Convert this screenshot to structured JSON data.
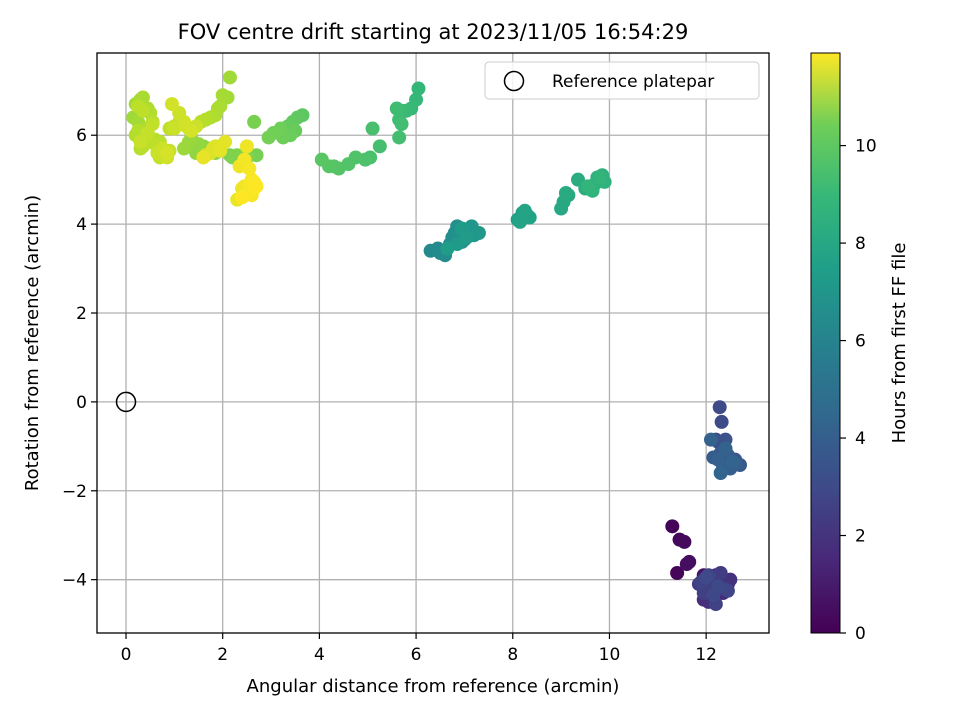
{
  "chart_data": {
    "type": "scatter",
    "title": "FOV centre drift starting at 2023/11/05 16:54:29",
    "xlabel": "Angular distance from reference (arcmin)",
    "ylabel": "Rotation from reference (arcmin)",
    "xlim": [
      -0.6,
      13.3
    ],
    "ylim": [
      -5.2,
      7.85
    ],
    "xticks": [
      0,
      2,
      4,
      6,
      8,
      10,
      12
    ],
    "yticks": [
      -4,
      -2,
      0,
      2,
      4,
      6
    ],
    "xtick_labels": [
      "0",
      "2",
      "4",
      "6",
      "8",
      "10",
      "12"
    ],
    "ytick_labels": [
      "−4",
      "−2",
      "0",
      "2",
      "4",
      "6"
    ],
    "grid": true,
    "legend": {
      "position": "top-right",
      "entries": [
        {
          "label": "Reference platepar",
          "marker": "open-circle"
        }
      ]
    },
    "reference_point": {
      "x": 0,
      "y": 0
    },
    "colorbar": {
      "label": "Hours from first FF file",
      "colormap": "viridis",
      "range": [
        0,
        11.9
      ],
      "ticks": [
        0,
        2,
        4,
        6,
        8,
        10
      ],
      "tick_labels": [
        "0",
        "2",
        "4",
        "6",
        "8",
        "10"
      ]
    },
    "series": [
      {
        "x": [
          11.3,
          11.45,
          11.55,
          11.4,
          11.65,
          11.6,
          11.95,
          12.0,
          12.1,
          11.9,
          12.2,
          12.3,
          12.45,
          12.15,
          12.35,
          11.95,
          12.05,
          12.5,
          12.25,
          12.4,
          12.15,
          12.0,
          11.85,
          12.3,
          12.1,
          11.95,
          12.2,
          12.35,
          11.9,
          12.45,
          12.05,
          12.15,
          12.25,
          12.0,
          12.28,
          12.32,
          12.2,
          12.25,
          12.4,
          12.5,
          12.6,
          12.7,
          12.3,
          12.45,
          12.15,
          12.5,
          12.35,
          12.6,
          12.25,
          12.1,
          12.4,
          12.55,
          12.3
        ],
        "y": [
          -2.8,
          -3.1,
          -3.15,
          -3.85,
          -3.6,
          -3.65,
          -3.9,
          -3.95,
          -4.0,
          -4.05,
          -3.9,
          -4.0,
          -4.1,
          -4.2,
          -4.3,
          -4.45,
          -4.5,
          -4.0,
          -4.1,
          -4.2,
          -3.95,
          -4.0,
          -4.1,
          -3.85,
          -4.15,
          -4.3,
          -4.55,
          -4.2,
          -4.05,
          -4.25,
          -3.9,
          -4.35,
          -4.15,
          -3.95,
          -0.12,
          -0.45,
          -0.85,
          -0.9,
          -0.85,
          -1.35,
          -1.3,
          -1.42,
          -1.15,
          -1.2,
          -1.25,
          -1.5,
          -1.45,
          -1.4,
          -1.3,
          -0.85,
          -1.05,
          -1.35,
          -1.6
        ],
        "hours": [
          0.1,
          0.2,
          0.3,
          0.15,
          0.4,
          0.45,
          0.6,
          0.7,
          0.8,
          0.9,
          1.0,
          1.1,
          1.2,
          1.3,
          1.4,
          1.5,
          1.6,
          1.7,
          1.8,
          1.9,
          2.0,
          2.05,
          2.1,
          2.15,
          2.2,
          2.25,
          2.3,
          2.35,
          2.4,
          2.45,
          2.5,
          2.55,
          2.6,
          2.65,
          2.7,
          2.75,
          2.8,
          2.9,
          3.0,
          3.1,
          3.2,
          3.3,
          3.35,
          3.4,
          3.45,
          3.5,
          3.55,
          3.6,
          3.65,
          3.7,
          3.75,
          3.8,
          3.85
        ]
      },
      {
        "x": [
          6.3,
          6.45,
          6.5,
          6.6,
          6.7,
          6.75,
          6.8,
          6.85,
          6.9,
          6.95,
          7.0,
          7.05,
          7.1,
          7.15,
          7.2,
          7.3,
          6.85,
          6.95,
          7.05,
          6.65,
          8.1,
          8.2,
          8.3,
          8.35,
          8.15,
          8.25,
          9.0,
          9.05,
          9.15,
          9.1,
          9.35,
          9.5,
          9.6,
          9.7,
          9.75,
          9.85,
          9.9,
          9.65,
          9.55,
          9.8
        ],
        "y": [
          3.4,
          3.45,
          3.35,
          3.3,
          3.55,
          3.7,
          3.8,
          3.95,
          3.75,
          3.6,
          3.65,
          3.8,
          3.85,
          3.95,
          3.75,
          3.8,
          3.55,
          3.9,
          3.7,
          3.45,
          4.1,
          4.25,
          4.2,
          4.15,
          4.05,
          4.3,
          4.35,
          4.5,
          4.65,
          4.7,
          5.0,
          4.8,
          4.85,
          4.9,
          5.05,
          5.1,
          4.95,
          4.75,
          4.85,
          5.05
        ],
        "hours": [
          5.6,
          5.65,
          5.7,
          5.75,
          5.8,
          5.85,
          5.9,
          5.95,
          6.0,
          6.05,
          6.1,
          6.15,
          6.2,
          6.25,
          6.3,
          6.35,
          6.4,
          6.45,
          6.5,
          6.55,
          6.7,
          6.75,
          6.8,
          6.85,
          6.9,
          6.95,
          7.1,
          7.15,
          7.2,
          7.25,
          7.35,
          7.4,
          7.45,
          7.5,
          7.55,
          7.6,
          7.65,
          7.7,
          7.75,
          7.8
        ]
      },
      {
        "x": [
          6.05,
          6.0,
          5.9,
          5.8,
          5.7,
          5.65,
          5.6,
          5.7,
          5.65,
          5.25,
          5.1,
          5.05,
          4.95,
          4.75,
          4.6,
          4.4,
          4.3,
          4.2,
          4.05,
          3.65,
          3.55,
          3.45,
          3.35,
          3.3,
          3.5,
          3.4,
          3.25,
          3.2,
          3.05,
          2.95,
          2.7,
          2.65,
          2.15,
          2.2,
          2.3,
          2.5,
          1.85,
          1.95,
          1.75,
          1.6,
          1.45,
          1.5,
          1.35,
          1.3,
          1.2
        ],
        "y": [
          7.05,
          6.8,
          6.6,
          6.55,
          6.55,
          6.35,
          6.6,
          6.25,
          5.95,
          5.75,
          6.15,
          5.5,
          5.45,
          5.5,
          5.35,
          5.25,
          5.3,
          5.3,
          5.45,
          6.45,
          6.4,
          6.3,
          6.2,
          6.05,
          6.1,
          6.0,
          5.95,
          6.15,
          6.05,
          5.95,
          5.55,
          6.3,
          5.55,
          5.5,
          5.55,
          5.5,
          5.6,
          5.75,
          5.7,
          5.75,
          5.6,
          5.8,
          5.95,
          5.85,
          5.7
        ],
        "hours": [
          7.9,
          7.95,
          8.0,
          8.05,
          8.1,
          8.15,
          8.2,
          8.25,
          8.3,
          8.35,
          8.4,
          8.45,
          8.5,
          8.55,
          8.6,
          8.65,
          8.7,
          8.75,
          8.8,
          8.85,
          8.9,
          8.95,
          9.0,
          9.05,
          9.1,
          9.15,
          9.2,
          9.25,
          9.3,
          9.35,
          9.4,
          9.45,
          9.5,
          9.55,
          9.6,
          9.65,
          9.7,
          9.75,
          9.8,
          9.85,
          9.9,
          9.95,
          10.0,
          10.05,
          10.1
        ]
      },
      {
        "x": [
          0.15,
          0.2,
          0.25,
          0.3,
          0.35,
          0.4,
          0.45,
          0.5,
          0.55,
          0.6,
          0.7,
          0.8,
          0.9,
          1.0,
          1.1,
          1.2,
          1.3,
          1.45,
          1.55,
          1.65,
          1.75,
          1.85,
          1.9,
          1.95,
          2.0,
          2.1,
          2.15,
          0.2,
          0.25,
          0.3,
          0.35,
          0.4,
          0.6,
          0.7,
          0.8,
          0.9,
          1.0,
          1.1,
          1.2,
          1.25,
          1.35,
          0.25,
          0.35,
          0.55,
          0.45,
          0.3,
          0.65,
          0.75,
          0.85,
          0.95,
          0.85
        ],
        "y": [
          6.4,
          6.7,
          6.3,
          6.8,
          6.85,
          6.15,
          6.6,
          6.5,
          6.3,
          5.9,
          5.85,
          5.6,
          6.15,
          6.2,
          6.3,
          6.25,
          6.15,
          6.2,
          6.3,
          6.35,
          6.4,
          6.45,
          6.6,
          6.65,
          6.9,
          6.85,
          7.3,
          6.0,
          6.1,
          5.7,
          5.75,
          5.9,
          5.8,
          5.5,
          5.55,
          5.65,
          6.15,
          6.5,
          6.3,
          6.2,
          6.1,
          6.65,
          6.55,
          6.25,
          6.05,
          5.85,
          5.6,
          5.7,
          5.5,
          6.7,
          5.6
        ],
        "hours": [
          10.15,
          10.2,
          10.25,
          10.3,
          10.35,
          10.4,
          10.45,
          10.5,
          10.55,
          10.6,
          10.65,
          10.7,
          10.75,
          10.8,
          10.85,
          10.9,
          10.95,
          11.0,
          10.6,
          10.55,
          10.5,
          10.45,
          10.4,
          10.35,
          10.3,
          10.25,
          10.2,
          10.5,
          10.55,
          10.6,
          10.65,
          10.7,
          10.75,
          10.8,
          10.85,
          10.9,
          10.95,
          11.0,
          11.05,
          11.1,
          11.15,
          10.7,
          10.75,
          10.8,
          10.85,
          10.9,
          10.95,
          11.0,
          11.05,
          11.1,
          11.15
        ]
      },
      {
        "x": [
          1.65,
          1.75,
          1.8,
          1.85,
          1.95,
          2.05,
          1.6,
          2.3,
          2.4,
          2.45,
          2.5,
          2.55,
          2.6,
          2.65,
          2.7,
          2.55,
          2.45,
          2.35,
          2.5,
          2.6,
          2.65,
          2.4
        ],
        "y": [
          5.55,
          5.6,
          5.7,
          5.75,
          5.65,
          5.85,
          5.5,
          4.55,
          4.8,
          4.85,
          4.7,
          4.9,
          4.65,
          4.95,
          4.85,
          5.25,
          5.45,
          5.3,
          5.75,
          5.0,
          4.8,
          4.6
        ],
        "hours": [
          11.2,
          11.25,
          11.3,
          11.35,
          11.4,
          11.45,
          11.5,
          11.55,
          11.6,
          11.65,
          11.7,
          11.75,
          11.8,
          11.85,
          11.9,
          11.75,
          11.7,
          11.65,
          11.6,
          11.8,
          11.85,
          11.9
        ]
      }
    ]
  }
}
